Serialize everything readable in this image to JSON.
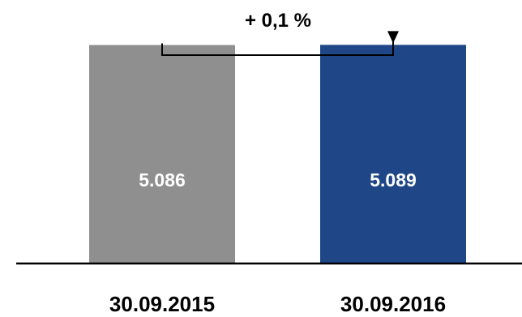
{
  "chart_data": {
    "type": "bar",
    "categories": [
      "30.09.2015",
      "30.09.2016"
    ],
    "values": [
      5086,
      5089
    ],
    "value_labels": [
      "5.086",
      "5.089"
    ],
    "colors": [
      "#8f8f8f",
      "#1f4788"
    ],
    "change_label": "+ 0,1 %",
    "ylim": [
      0,
      5850
    ],
    "grid": false,
    "legend": "none"
  }
}
